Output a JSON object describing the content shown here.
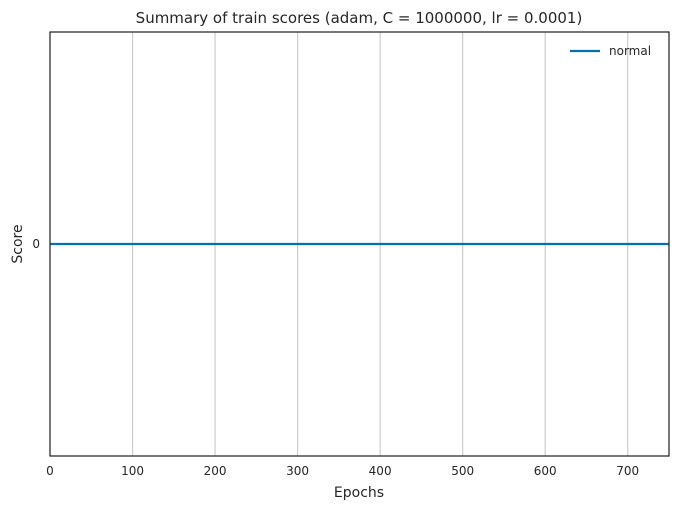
{
  "chart_data": {
    "type": "line",
    "title": "Summary of train scores (adam, C = 1000000, lr = 0.0001)",
    "xlabel": "Epochs",
    "ylabel": "Score",
    "xlim": [
      0,
      750
    ],
    "ylim": [
      -1,
      1
    ],
    "xticks": [
      0,
      100,
      200,
      300,
      400,
      500,
      600,
      700
    ],
    "yticks": [
      0
    ],
    "grid": "vertical",
    "legend_position": "top-right",
    "series": [
      {
        "name": "normal",
        "color": "#0072b2",
        "x": [
          0,
          750
        ],
        "y": [
          0,
          0
        ]
      }
    ]
  }
}
